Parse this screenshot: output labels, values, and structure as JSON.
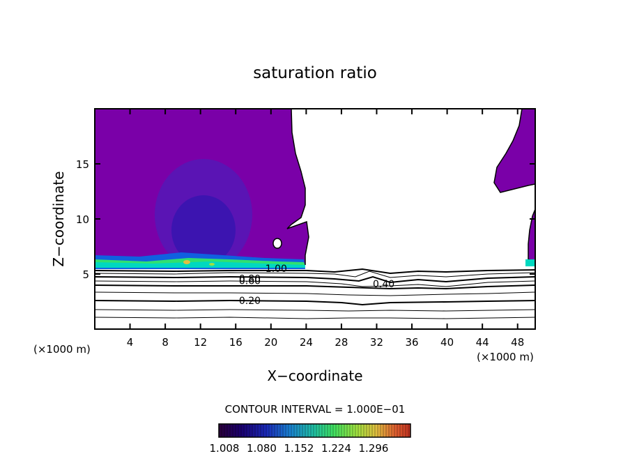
{
  "chart_data": {
    "type": "heatmap",
    "title": "saturation ratio",
    "xlabel": "X−coordinate",
    "ylabel": "Z−coordinate",
    "x_unit_left": "(×1000 m)",
    "x_unit_right": "(×1000 m)",
    "xlim": [
      0,
      50
    ],
    "ylim": [
      0,
      20
    ],
    "x_ticks": [
      4,
      8,
      12,
      16,
      20,
      24,
      28,
      32,
      36,
      40,
      44,
      48
    ],
    "y_ticks": [
      5,
      10,
      15
    ],
    "contour_interval_text": "CONTOUR INTERVAL = 1.000E−01",
    "contour_labels": [
      {
        "text": "1.00",
        "x": 20.6,
        "y": 5.5
      },
      {
        "text": "0.80",
        "x": 17.6,
        "y": 4.6
      },
      {
        "text": "0.60",
        "x": 17.6,
        "y": 4.4
      },
      {
        "text": "0.40",
        "x": 32.8,
        "y": 4.1
      },
      {
        "text": "0.20",
        "x": 17.6,
        "y": 2.6
      }
    ],
    "colorbar": {
      "ticks": [
        "1.008",
        "1.080",
        "1.152",
        "1.224",
        "1.296"
      ],
      "colors": [
        "#2a003a",
        "#1a0070",
        "#1a2ab8",
        "#1a80d0",
        "#20c0a0",
        "#40e060",
        "#a0e040",
        "#e0c040",
        "#e06030",
        "#c03020"
      ]
    },
    "shaded_field": {
      "fill_color": "#7a00a8",
      "inner_color": "#5a14b4",
      "core_color": "#3c14b0",
      "low_band_colors": [
        "#00d8c0",
        "#30e070",
        "#1060e0"
      ]
    }
  }
}
